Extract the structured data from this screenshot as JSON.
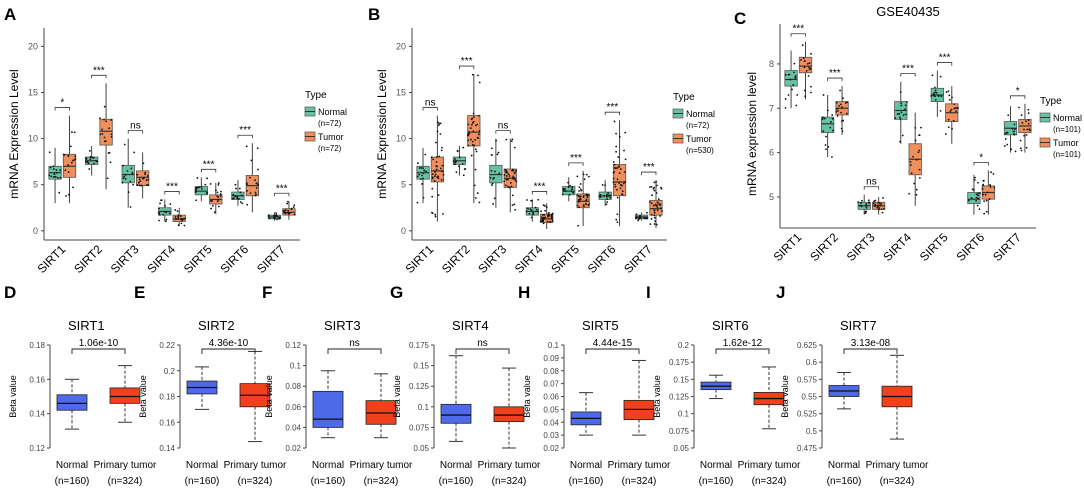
{
  "colors": {
    "normal": "#35a884",
    "normal_fill": "#66c2a5",
    "tumor": "#d96b36",
    "tumor_fill": "#f08f5c",
    "methyl_normal": "#4f6ae8",
    "methyl_tumor": "#f0401c",
    "axis": "#333333",
    "grid_bg": "#ffffff",
    "point": "#000000"
  },
  "categories": [
    "SIRT1",
    "SIRT2",
    "SIRT3",
    "SIRT4",
    "SIRT5",
    "SIRT6",
    "SIRT7"
  ],
  "chart_data": [
    {
      "panel": "A",
      "type": "box",
      "title": "",
      "xlabel": "",
      "ylabel": "mRNA Expression Level",
      "ylim": [
        -1,
        22
      ],
      "yticks": [
        0,
        5,
        10,
        15,
        20
      ],
      "legend": {
        "title": "Type",
        "position": "right",
        "entries": [
          "Normal",
          "(n=72)",
          "Tumor",
          "(n=72)"
        ]
      },
      "categories": [
        "SIRT1",
        "SIRT2",
        "SIRT3",
        "SIRT4",
        "SIRT5",
        "SIRT6",
        "SIRT7"
      ],
      "significance": [
        "*",
        "***",
        "ns",
        "***",
        "***",
        "***",
        "***"
      ],
      "series": [
        {
          "name": "Normal",
          "n": 72,
          "boxes": [
            {
              "min": 3.0,
              "q1": 5.6,
              "med": 6.3,
              "q3": 7.0,
              "max": 9.0
            },
            {
              "min": 6.0,
              "q1": 7.2,
              "med": 7.6,
              "q3": 8.0,
              "max": 9.2
            },
            {
              "min": 2.5,
              "q1": 5.2,
              "med": 6.1,
              "q3": 7.1,
              "max": 10.0
            },
            {
              "min": 1.0,
              "q1": 1.7,
              "med": 2.1,
              "q3": 2.5,
              "max": 3.4
            },
            {
              "min": 3.2,
              "q1": 3.9,
              "med": 4.3,
              "q3": 4.8,
              "max": 5.8
            },
            {
              "min": 2.7,
              "q1": 3.4,
              "med": 3.8,
              "q3": 4.2,
              "max": 5.5
            },
            {
              "min": 1.1,
              "q1": 1.3,
              "med": 1.5,
              "q3": 1.7,
              "max": 2.0
            }
          ]
        },
        {
          "name": "Tumor",
          "n": 72,
          "boxes": [
            {
              "min": 3.0,
              "q1": 5.8,
              "med": 7.0,
              "q3": 8.3,
              "max": 12.5
            },
            {
              "min": 4.5,
              "q1": 9.3,
              "med": 10.8,
              "q3": 12.1,
              "max": 16.0
            },
            {
              "min": 3.5,
              "q1": 4.9,
              "med": 5.8,
              "q3": 6.5,
              "max": 8.5
            },
            {
              "min": 0.5,
              "q1": 1.0,
              "med": 1.3,
              "q3": 1.7,
              "max": 2.5
            },
            {
              "min": 1.8,
              "q1": 2.9,
              "med": 3.4,
              "q3": 3.9,
              "max": 5.2
            },
            {
              "min": 2.0,
              "q1": 3.8,
              "med": 4.9,
              "q3": 6.0,
              "max": 9.5
            },
            {
              "min": 1.2,
              "q1": 1.7,
              "med": 2.0,
              "q3": 2.4,
              "max": 3.2
            }
          ]
        }
      ]
    },
    {
      "panel": "B",
      "type": "box",
      "title": "",
      "xlabel": "",
      "ylabel": "mRNA Expression Level",
      "ylim": [
        -1,
        22
      ],
      "yticks": [
        0,
        5,
        10,
        15,
        20
      ],
      "legend": {
        "title": "Type",
        "position": "right",
        "entries": [
          "Normal",
          "(n=72)",
          "Tumor",
          "(n=530)"
        ]
      },
      "categories": [
        "SIRT1",
        "SIRT2",
        "SIRT3",
        "SIRT4",
        "SIRT5",
        "SIRT6",
        "SIRT7"
      ],
      "significance": [
        "ns",
        "***",
        "ns",
        "***",
        "***",
        "***",
        "***"
      ],
      "series": [
        {
          "name": "Normal",
          "n": 72,
          "boxes": [
            {
              "min": 3.0,
              "q1": 5.6,
              "med": 6.3,
              "q3": 7.0,
              "max": 9.0
            },
            {
              "min": 6.0,
              "q1": 7.2,
              "med": 7.6,
              "q3": 8.0,
              "max": 9.2
            },
            {
              "min": 2.5,
              "q1": 5.2,
              "med": 6.1,
              "q3": 7.1,
              "max": 10.0
            },
            {
              "min": 1.0,
              "q1": 1.7,
              "med": 2.1,
              "q3": 2.5,
              "max": 3.4
            },
            {
              "min": 3.2,
              "q1": 3.9,
              "med": 4.3,
              "q3": 4.8,
              "max": 5.8
            },
            {
              "min": 2.7,
              "q1": 3.4,
              "med": 3.8,
              "q3": 4.2,
              "max": 5.5
            },
            {
              "min": 1.1,
              "q1": 1.3,
              "med": 1.5,
              "q3": 1.7,
              "max": 2.0
            }
          ]
        },
        {
          "name": "Tumor",
          "n": 530,
          "boxes": [
            {
              "min": 1.0,
              "q1": 5.3,
              "med": 6.5,
              "q3": 8.0,
              "max": 12.5
            },
            {
              "min": 3.0,
              "q1": 9.2,
              "med": 10.7,
              "q3": 12.5,
              "max": 17.0
            },
            {
              "min": 2.0,
              "q1": 4.7,
              "med": 5.7,
              "q3": 6.7,
              "max": 10.0
            },
            {
              "min": 0.2,
              "q1": 0.9,
              "med": 1.3,
              "q3": 1.8,
              "max": 3.0
            },
            {
              "min": 0.5,
              "q1": 2.5,
              "med": 3.2,
              "q3": 4.0,
              "max": 6.5
            },
            {
              "min": 0.5,
              "q1": 3.8,
              "med": 5.3,
              "q3": 7.2,
              "max": 12.0
            },
            {
              "min": 0.3,
              "q1": 1.7,
              "med": 2.4,
              "q3": 3.3,
              "max": 5.5
            }
          ]
        }
      ]
    },
    {
      "panel": "C",
      "type": "box",
      "title": "GSE40435",
      "xlabel": "",
      "ylabel": "mRNA expression level",
      "ylim": [
        4.3,
        8.9
      ],
      "yticks": [
        5,
        6,
        7,
        8
      ],
      "legend": {
        "title": "Type",
        "position": "right",
        "entries": [
          "Normal",
          "(n=101)",
          "Tumor",
          "(n=101)"
        ]
      },
      "categories": [
        "SIRT1",
        "SIRT2",
        "SIRT3",
        "SIRT4",
        "SIRT5",
        "SIRT6",
        "SIRT7"
      ],
      "significance": [
        "***",
        "***",
        "ns",
        "***",
        "***",
        "*",
        "*"
      ],
      "series": [
        {
          "name": "Normal",
          "n": 101,
          "boxes": [
            {
              "min": 7.0,
              "q1": 7.5,
              "med": 7.65,
              "q3": 7.85,
              "max": 8.3
            },
            {
              "min": 5.9,
              "q1": 6.45,
              "med": 6.65,
              "q3": 6.8,
              "max": 7.3
            },
            {
              "min": 4.6,
              "q1": 4.72,
              "med": 4.8,
              "q3": 4.88,
              "max": 5.05
            },
            {
              "min": 6.2,
              "q1": 6.75,
              "med": 6.95,
              "q3": 7.15,
              "max": 7.6
            },
            {
              "min": 6.8,
              "q1": 7.15,
              "med": 7.3,
              "q3": 7.45,
              "max": 7.85
            },
            {
              "min": 4.6,
              "q1": 4.85,
              "med": 4.95,
              "q3": 5.1,
              "max": 5.5
            },
            {
              "min": 6.0,
              "q1": 6.4,
              "med": 6.55,
              "q3": 6.7,
              "max": 7.05
            }
          ]
        },
        {
          "name": "Tumor",
          "n": 101,
          "boxes": [
            {
              "min": 7.2,
              "q1": 7.8,
              "med": 7.95,
              "q3": 8.15,
              "max": 8.5
            },
            {
              "min": 6.4,
              "q1": 6.85,
              "med": 7.0,
              "q3": 7.15,
              "max": 7.5
            },
            {
              "min": 4.6,
              "q1": 4.72,
              "med": 4.8,
              "q3": 4.88,
              "max": 5.0
            },
            {
              "min": 4.8,
              "q1": 5.5,
              "med": 5.85,
              "q3": 6.2,
              "max": 6.9
            },
            {
              "min": 6.2,
              "q1": 6.7,
              "med": 6.9,
              "q3": 7.1,
              "max": 7.5
            },
            {
              "min": 4.6,
              "q1": 4.95,
              "med": 5.1,
              "q3": 5.25,
              "max": 5.6
            },
            {
              "min": 6.0,
              "q1": 6.45,
              "med": 6.6,
              "q3": 6.75,
              "max": 7.1
            }
          ]
        }
      ]
    },
    {
      "panel": "D",
      "type": "box",
      "title": "SIRT1",
      "ylabel": "Beta value",
      "ylim": [
        0.12,
        0.18
      ],
      "yticks": [
        0.12,
        0.14,
        0.16,
        0.18
      ],
      "ytick_labels": [
        "0.12",
        "0.14",
        "0.16",
        "0.18"
      ],
      "pvalue": "1.06e-10",
      "categories": [
        "Normal",
        "Primary tumor"
      ],
      "sample_sizes": [
        "(n=160)",
        "(n=324)"
      ],
      "boxes": [
        {
          "min": 0.131,
          "q1": 0.142,
          "med": 0.146,
          "q3": 0.151,
          "max": 0.16
        },
        {
          "min": 0.135,
          "q1": 0.146,
          "med": 0.15,
          "q3": 0.155,
          "max": 0.168
        }
      ]
    },
    {
      "panel": "E",
      "type": "box",
      "title": "SIRT2",
      "ylabel": "Beta value",
      "ylim": [
        0.14,
        0.22
      ],
      "yticks": [
        0.14,
        0.16,
        0.18,
        0.2,
        0.22
      ],
      "ytick_labels": [
        "0.14",
        "0.16",
        "0.18",
        "0.2",
        "0.22"
      ],
      "pvalue": "4.36e-10",
      "categories": [
        "Normal",
        "Primary tumor"
      ],
      "sample_sizes": [
        "(n=160)",
        "(n=324)"
      ],
      "boxes": [
        {
          "min": 0.17,
          "q1": 0.182,
          "med": 0.187,
          "q3": 0.192,
          "max": 0.203
        },
        {
          "min": 0.145,
          "q1": 0.172,
          "med": 0.181,
          "q3": 0.19,
          "max": 0.215
        }
      ]
    },
    {
      "panel": "F",
      "type": "box",
      "title": "SIRT3",
      "ylabel": "Beta value",
      "ylim": [
        0.02,
        0.12
      ],
      "yticks": [
        0.02,
        0.04,
        0.06,
        0.08,
        0.1,
        0.12
      ],
      "ytick_labels": [
        "0.02",
        "0.04",
        "0.06",
        "0.08",
        "0.1",
        "0.12"
      ],
      "pvalue": "ns",
      "categories": [
        "Normal",
        "Primary tumor"
      ],
      "sample_sizes": [
        "(n=160)",
        "(n=324)"
      ],
      "boxes": [
        {
          "min": 0.03,
          "q1": 0.04,
          "med": 0.048,
          "q3": 0.075,
          "max": 0.095
        },
        {
          "min": 0.03,
          "q1": 0.043,
          "med": 0.054,
          "q3": 0.066,
          "max": 0.092
        }
      ]
    },
    {
      "panel": "G",
      "type": "box",
      "title": "SIRT4",
      "ylabel": "Beta value",
      "ylim": [
        0.05,
        0.175
      ],
      "yticks": [
        0.05,
        0.075,
        0.1,
        0.125,
        0.15,
        0.175
      ],
      "ytick_labels": [
        "0.05",
        "0.075",
        "0.1",
        "0.125",
        "0.15",
        "0.175"
      ],
      "pvalue": "ns",
      "categories": [
        "Normal",
        "Primary tumor"
      ],
      "sample_sizes": [
        "(n=160)",
        "(n=324)"
      ],
      "boxes": [
        {
          "min": 0.058,
          "q1": 0.08,
          "med": 0.09,
          "q3": 0.103,
          "max": 0.162
        },
        {
          "min": 0.05,
          "q1": 0.082,
          "med": 0.09,
          "q3": 0.1,
          "max": 0.147
        }
      ]
    },
    {
      "panel": "H",
      "type": "box",
      "title": "SIRT5",
      "ylabel": "Beta value",
      "ylim": [
        0.02,
        0.1
      ],
      "yticks": [
        0.02,
        0.03,
        0.04,
        0.05,
        0.06,
        0.07,
        0.08,
        0.09,
        0.1
      ],
      "ytick_labels": [
        "0.02",
        "0.03",
        "0.04",
        "0.05",
        "0.06",
        "0.07",
        "0.08",
        "0.09",
        "0.1"
      ],
      "pvalue": "4.44e-15",
      "categories": [
        "Normal",
        "Primary tumor"
      ],
      "sample_sizes": [
        "(n=160)",
        "(n=324)"
      ],
      "boxes": [
        {
          "min": 0.03,
          "q1": 0.038,
          "med": 0.043,
          "q3": 0.048,
          "max": 0.063
        },
        {
          "min": 0.03,
          "q1": 0.042,
          "med": 0.05,
          "q3": 0.057,
          "max": 0.088
        }
      ]
    },
    {
      "panel": "I",
      "type": "box",
      "title": "SIRT6",
      "ylabel": "Beta value",
      "ylim": [
        0.05,
        0.2
      ],
      "yticks": [
        0.05,
        0.075,
        0.1,
        0.125,
        0.15,
        0.175,
        0.2
      ],
      "ytick_labels": [
        "0.05",
        "0.075",
        "0.1",
        "0.125",
        "0.15",
        "0.175",
        "0.2"
      ],
      "pvalue": "1.62e-12",
      "categories": [
        "Normal",
        "Primary tumor"
      ],
      "sample_sizes": [
        "(n=160)",
        "(n=324)"
      ],
      "boxes": [
        {
          "min": 0.122,
          "q1": 0.135,
          "med": 0.14,
          "q3": 0.146,
          "max": 0.156
        },
        {
          "min": 0.078,
          "q1": 0.113,
          "med": 0.122,
          "q3": 0.131,
          "max": 0.168
        }
      ]
    },
    {
      "panel": "J",
      "type": "box",
      "title": "SIRT7",
      "ylabel": "Beta value",
      "ylim": [
        0.475,
        0.625
      ],
      "yticks": [
        0.475,
        0.5,
        0.525,
        0.55,
        0.575,
        0.6,
        0.625
      ],
      "ytick_labels": [
        "0.475",
        "0.5",
        "0.525",
        "0.55",
        "0.575",
        "0.6",
        "0.625"
      ],
      "pvalue": "3.13e-08",
      "categories": [
        "Normal",
        "Primary tumor"
      ],
      "sample_sizes": [
        "(n=160)",
        "(n=324)"
      ],
      "boxes": [
        {
          "min": 0.532,
          "q1": 0.55,
          "med": 0.558,
          "q3": 0.566,
          "max": 0.585
        },
        {
          "min": 0.488,
          "q1": 0.535,
          "med": 0.55,
          "q3": 0.565,
          "max": 0.61
        }
      ]
    }
  ],
  "panel_letters": [
    "A",
    "B",
    "C",
    "D",
    "E",
    "F",
    "G",
    "H",
    "I",
    "J"
  ]
}
